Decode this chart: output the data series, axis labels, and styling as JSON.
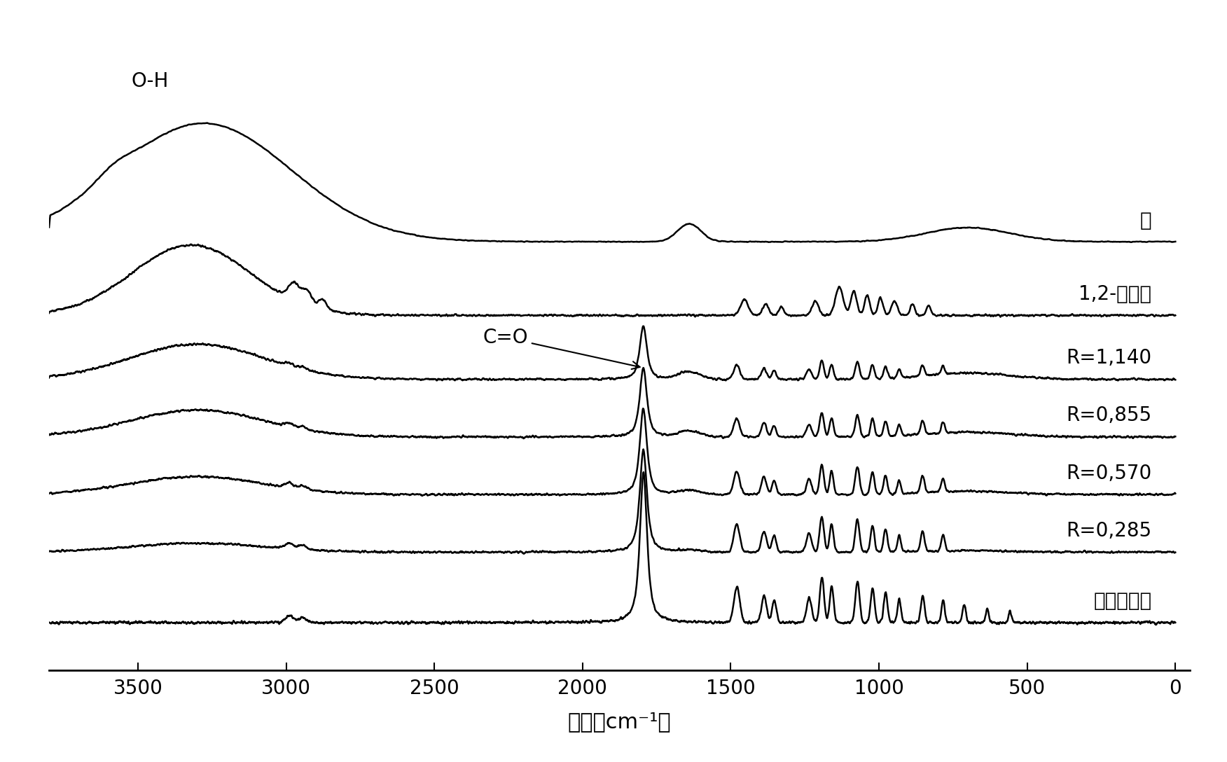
{
  "title": "",
  "xlabel": "波长（cm⁻¹）",
  "xlim_left": 3800,
  "xlim_right": -50,
  "xticks": [
    3500,
    3000,
    2500,
    2000,
    1500,
    1000,
    500,
    0
  ],
  "background_color": "#ffffff",
  "line_color": "#000000",
  "labels": [
    "水",
    "1,2-丙二醇",
    "R=1,140",
    "R=0,855",
    "R=0,570",
    "R=0,285",
    "碳酸丙烯酵"
  ],
  "offsets": [
    6.5,
    5.35,
    4.35,
    3.45,
    2.55,
    1.65,
    0.55
  ],
  "annotation_oh": "O-H",
  "annotation_co": "C=O"
}
